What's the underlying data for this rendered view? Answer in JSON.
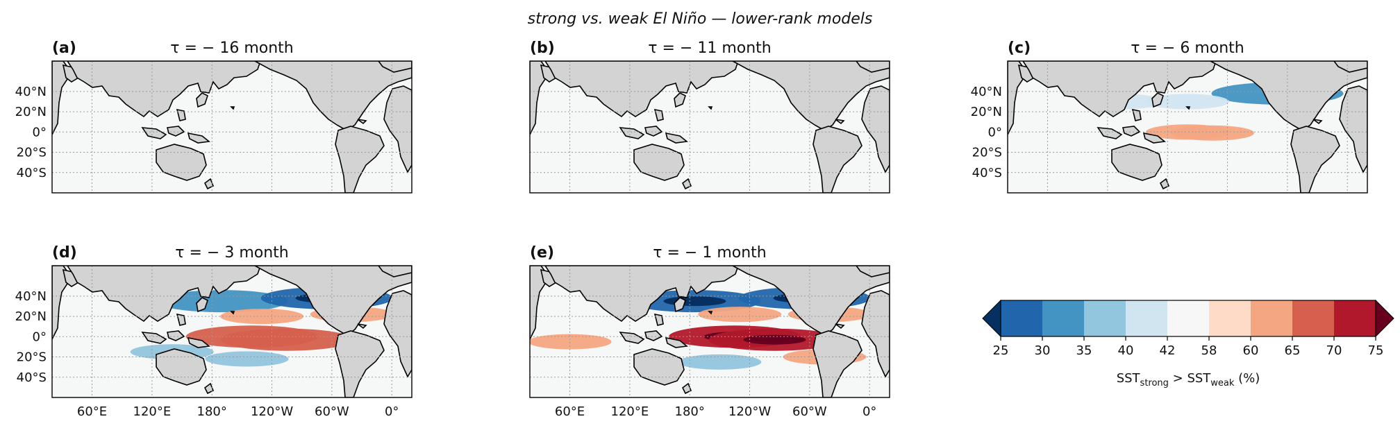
{
  "figure": {
    "title": "strong vs. weak El Niño — lower-rank models"
  },
  "chart_data": [
    {
      "type": "heatmap",
      "panel": "(a)",
      "title": "τ = − 16 month",
      "ylabel_ticks": [
        "40°N",
        "20°N",
        "0°",
        "20°S",
        "40°S"
      ],
      "xlabel_ticks": [],
      "anomaly_regions": []
    },
    {
      "type": "heatmap",
      "panel": "(b)",
      "title": "τ = − 11 month",
      "ylabel_ticks": [],
      "xlabel_ticks": [],
      "anomaly_regions": []
    },
    {
      "type": "heatmap",
      "panel": "(c)",
      "title": "τ = − 6 month",
      "ylabel_ticks": [
        "40°N",
        "20°N",
        "0°",
        "20°S",
        "40°S"
      ],
      "xlabel_ticks": [],
      "anomaly_regions": [
        {
          "lon": 200,
          "lat": 0,
          "value": 62
        },
        {
          "lon": 225,
          "lat": -1,
          "value": 63
        },
        {
          "lon": 290,
          "lat": 38,
          "value": 32
        },
        {
          "lon": 200,
          "lat": 30,
          "value": 40
        },
        {
          "lon": 135,
          "lat": 30,
          "value": 40
        }
      ]
    },
    {
      "type": "heatmap",
      "panel": "(d)",
      "title": "τ = − 3 month",
      "ylabel_ticks": [
        "40°N",
        "20°N",
        "0°",
        "20°S",
        "40°S"
      ],
      "xlabel_ticks": [
        "60°E",
        "120°E",
        "180°",
        "120°W",
        "60°W",
        "0°"
      ],
      "anomaly_regions": [
        {
          "lon": 220,
          "lat": 0,
          "value": 66
        },
        {
          "lon": 255,
          "lat": -3,
          "value": 68
        },
        {
          "lon": 190,
          "lat": 35,
          "value": 32
        },
        {
          "lon": 295,
          "lat": 38,
          "value": 27
        },
        {
          "lon": 230,
          "lat": 20,
          "value": 62
        },
        {
          "lon": 215,
          "lat": -22,
          "value": 38
        },
        {
          "lon": 140,
          "lat": -15,
          "value": 35
        },
        {
          "lon": 320,
          "lat": 22,
          "value": 62
        }
      ]
    },
    {
      "type": "heatmap",
      "panel": "(e)",
      "title": "τ = − 1 month",
      "ylabel_ticks": [],
      "xlabel_ticks": [
        "60°E",
        "120°E",
        "180°",
        "120°W",
        "60°W",
        "0°"
      ],
      "anomaly_regions": [
        {
          "lon": 225,
          "lat": 0,
          "value": 72
        },
        {
          "lon": 265,
          "lat": -3,
          "value": 73
        },
        {
          "lon": 185,
          "lat": 35,
          "value": 27
        },
        {
          "lon": 295,
          "lat": 38,
          "value": 27
        },
        {
          "lon": 230,
          "lat": 22,
          "value": 62
        },
        {
          "lon": 210,
          "lat": -25,
          "value": 35
        },
        {
          "lon": 60,
          "lat": -5,
          "value": 62
        },
        {
          "lon": 315,
          "lat": -20,
          "value": 62
        },
        {
          "lon": 320,
          "lat": 22,
          "value": 62
        }
      ]
    }
  ],
  "colorbar": {
    "label_main": "SST",
    "label_sub1": "strong",
    "label_mid": " > SST",
    "label_sub2": "weak",
    "label_unit": " (%)",
    "ticks": [
      "25",
      "30",
      "35",
      "40",
      "42",
      "58",
      "60",
      "65",
      "70",
      "75"
    ],
    "colors": [
      "#2166ac",
      "#4393c3",
      "#92c5de",
      "#d1e5f0",
      "#f7f7f7",
      "#fddbc7",
      "#f4a582",
      "#d6604d",
      "#b2182b"
    ],
    "under_color": "#053061",
    "over_color": "#67001f"
  },
  "colors": {
    "land": "#d3d3d3",
    "ocean": "#f6f7f7",
    "coast": "#000000",
    "grid": "#999999"
  }
}
